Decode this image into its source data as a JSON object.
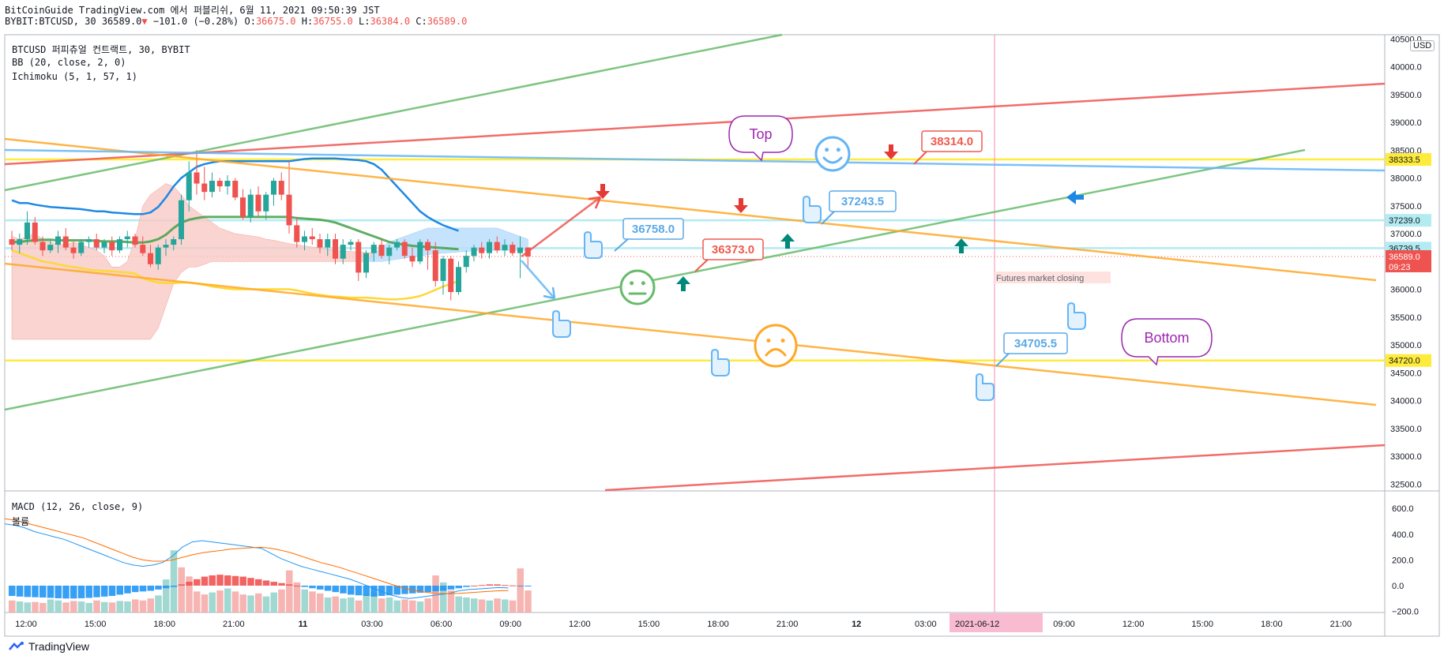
{
  "header": {
    "line1": "BitCoinGuide TradingView.com 에서 퍼블리쉬, 6월 11, 2021 09:50:39 JST",
    "symbol": "BYBIT:BTCUSD, 30",
    "last": "36589.0",
    "change": "−101.0 (−0.28%)",
    "o_label": "O:",
    "o": "36675.0",
    "h_label": "H:",
    "h": "36755.0",
    "l_label": "L:",
    "l": "36384.0",
    "c_label": "C:",
    "c": "36589.0"
  },
  "legend": {
    "title": "BTCUSD 퍼피츄얼 컨트랙트, 30, BYBIT",
    "bb": "BB (20, close, 2, 0)",
    "ichimoku": "Ichimoku (5, 1, 57, 1)",
    "macd": "MACD (12, 26, close, 9)",
    "volume": "볼륨"
  },
  "currency_badge": "USD",
  "footer": {
    "brand": "TradingView"
  },
  "chart_data": [
    {
      "type": "candlestick",
      "yticks": [
        "40500.0",
        "40000.0",
        "39500.0",
        "39000.0",
        "38500.0",
        "38000.0",
        "37500.0",
        "37000.0",
        "36500.0",
        "36000.0",
        "35500.0",
        "35000.0",
        "34500.0",
        "34000.0",
        "33500.0",
        "33000.0",
        "32500.0"
      ],
      "ylim": [
        32400,
        40600
      ],
      "xticks": [
        "12:00",
        "15:00",
        "18:00",
        "21:00",
        "11",
        "03:00",
        "06:00",
        "09:00",
        "12:00",
        "15:00",
        "18:00",
        "21:00",
        "12",
        "03:00",
        "06:00",
        "09:00",
        "12:00",
        "15:00",
        "18:00",
        "21:00"
      ],
      "x_cursor_label": "2021-06-12",
      "candles": [
        [
          36900,
          37050,
          36700,
          36800
        ],
        [
          36800,
          37000,
          36650,
          36900
        ],
        [
          36900,
          37400,
          36800,
          37200
        ],
        [
          37200,
          37300,
          36800,
          36850
        ],
        [
          36850,
          36950,
          36600,
          36700
        ],
        [
          36700,
          36900,
          36650,
          36800
        ],
        [
          36800,
          37050,
          36650,
          36950
        ],
        [
          36950,
          37100,
          36700,
          36750
        ],
        [
          36750,
          36850,
          36550,
          36650
        ],
        [
          36650,
          36900,
          36600,
          36850
        ],
        [
          36850,
          36950,
          36750,
          36900
        ],
        [
          36900,
          37000,
          36700,
          36750
        ],
        [
          36750,
          36900,
          36650,
          36850
        ],
        [
          36850,
          36950,
          36600,
          36700
        ],
        [
          36700,
          36950,
          36650,
          36900
        ],
        [
          36900,
          37050,
          36750,
          36950
        ],
        [
          36950,
          37000,
          36750,
          36800
        ],
        [
          36800,
          36950,
          36600,
          36650
        ],
        [
          36650,
          36800,
          36400,
          36450
        ],
        [
          36450,
          36800,
          36350,
          36750
        ],
        [
          36750,
          36900,
          36600,
          36800
        ],
        [
          36800,
          36950,
          36700,
          36900
        ],
        [
          36900,
          37700,
          36800,
          37600
        ],
        [
          37600,
          38300,
          37400,
          38100
        ],
        [
          38100,
          38500,
          37700,
          37900
        ],
        [
          37900,
          38200,
          37600,
          37750
        ],
        [
          37750,
          38100,
          37650,
          37950
        ],
        [
          37950,
          38000,
          37750,
          37850
        ],
        [
          37850,
          38050,
          37700,
          37950
        ],
        [
          37950,
          38000,
          37600,
          37650
        ],
        [
          37650,
          37800,
          37250,
          37300
        ],
        [
          37300,
          37800,
          37200,
          37700
        ],
        [
          37700,
          37850,
          37300,
          37400
        ],
        [
          37400,
          37750,
          37250,
          37700
        ],
        [
          37700,
          38000,
          37500,
          37950
        ],
        [
          37950,
          38100,
          37600,
          37700
        ],
        [
          37700,
          38300,
          37000,
          37150
        ],
        [
          37150,
          37300,
          36750,
          36850
        ],
        [
          36850,
          37050,
          36700,
          36950
        ],
        [
          36950,
          37100,
          36800,
          36900
        ],
        [
          36900,
          37000,
          36650,
          36750
        ],
        [
          36750,
          37000,
          36600,
          36900
        ],
        [
          36900,
          37000,
          36450,
          36550
        ],
        [
          36550,
          36900,
          36450,
          36800
        ],
        [
          36800,
          36900,
          36700,
          36850
        ],
        [
          36850,
          36900,
          36150,
          36300
        ],
        [
          36300,
          36700,
          36200,
          36650
        ],
        [
          36650,
          36850,
          36500,
          36800
        ],
        [
          36800,
          36900,
          36550,
          36600
        ],
        [
          36600,
          36800,
          36450,
          36750
        ],
        [
          36750,
          36900,
          36700,
          36850
        ],
        [
          36850,
          36900,
          36550,
          36600
        ],
        [
          36600,
          36750,
          36400,
          36500
        ],
        [
          36500,
          36900,
          36450,
          36850
        ],
        [
          36850,
          36900,
          36350,
          36700
        ],
        [
          36700,
          36850,
          36050,
          36150
        ],
        [
          36150,
          36600,
          35900,
          36550
        ],
        [
          36550,
          36600,
          35800,
          35950
        ],
        [
          35950,
          36500,
          35900,
          36400
        ],
        [
          36400,
          36700,
          36300,
          36600
        ],
        [
          36600,
          36800,
          36500,
          36750
        ],
        [
          36750,
          36850,
          36550,
          36650
        ],
        [
          36650,
          36900,
          36550,
          36850
        ],
        [
          36850,
          36950,
          36650,
          36700
        ],
        [
          36700,
          36900,
          36600,
          36800
        ],
        [
          36800,
          36850,
          36600,
          36650
        ],
        [
          36650,
          36950,
          36200,
          36750
        ],
        [
          36750,
          36755,
          36384,
          36589
        ]
      ],
      "annotations": [
        {
          "kind": "label",
          "text": "38314.0",
          "color": "#f05a4f"
        },
        {
          "kind": "label",
          "text": "37243.5",
          "color": "#5aa9e6"
        },
        {
          "kind": "label",
          "text": "36758.0",
          "color": "#5aa9e6"
        },
        {
          "kind": "label",
          "text": "36373.0",
          "color": "#f05a4f"
        },
        {
          "kind": "label",
          "text": "34705.5",
          "color": "#5aa9e6"
        },
        {
          "kind": "balloon",
          "text": "Top",
          "color": "#9c27b0"
        },
        {
          "kind": "balloon",
          "text": "Bottom",
          "color": "#9c27b0"
        },
        {
          "kind": "note",
          "text": "Futures market closing"
        }
      ],
      "price_tags": [
        {
          "value": 38333.5,
          "text": "38333.5",
          "bg": "#ffeb3b",
          "fg": "#131722"
        },
        {
          "value": 37239.0,
          "text": "37239.0",
          "bg": "#b2ebf2",
          "fg": "#131722"
        },
        {
          "value": 36739.5,
          "text": "36739.5",
          "bg": "#b2ebf2",
          "fg": "#131722"
        },
        {
          "value": 36589.0,
          "text": "36589.0",
          "bg": "#ef5350",
          "fg": "#ffffff",
          "sub": "09:23"
        },
        {
          "value": 34720.0,
          "text": "34720.0",
          "bg": "#ffeb3b",
          "fg": "#131722"
        }
      ]
    },
    {
      "type": "macd",
      "yticks": [
        "600.0",
        "400.0",
        "200.0",
        "0.0",
        "−200.0"
      ],
      "ylim": [
        -260,
        650
      ],
      "hist": [
        -80,
        -85,
        -88,
        -90,
        -92,
        -95,
        -98,
        -100,
        -100,
        -98,
        -95,
        -90,
        -85,
        -80,
        -70,
        -60,
        -50,
        -45,
        -40,
        -30,
        -20,
        -10,
        10,
        30,
        50,
        70,
        80,
        85,
        80,
        75,
        70,
        60,
        50,
        40,
        30,
        20,
        10,
        0,
        -10,
        -20,
        -30,
        -40,
        -50,
        -60,
        -70,
        -75,
        -80,
        -85,
        -80,
        -75,
        -70,
        -65,
        -60,
        -55,
        -50,
        -45,
        -40,
        -30,
        -20,
        -10,
        0,
        5,
        10,
        10,
        5,
        2,
        -2,
        -5
      ],
      "volume": [
        120,
        110,
        100,
        105,
        95,
        130,
        120,
        100,
        115,
        110,
        95,
        120,
        105,
        100,
        115,
        110,
        130,
        120,
        140,
        170,
        330,
        620,
        450,
        360,
        210,
        180,
        200,
        220,
        240,
        210,
        180,
        170,
        190,
        160,
        200,
        230,
        420,
        300,
        230,
        210,
        190,
        150,
        160,
        140,
        150,
        120,
        180,
        200,
        140,
        150,
        120,
        130,
        120,
        110,
        140,
        370,
        300,
        220,
        160,
        150,
        140,
        130,
        120,
        140,
        130,
        120,
        440,
        220
      ],
      "volume_up": [
        false,
        true,
        true,
        false,
        false,
        true,
        true,
        false,
        false,
        true,
        true,
        false,
        true,
        false,
        true,
        true,
        false,
        false,
        false,
        true,
        true,
        true,
        false,
        false,
        false,
        false,
        true,
        false,
        true,
        false,
        false,
        true,
        false,
        true,
        true,
        false,
        false,
        false,
        true,
        false,
        false,
        true,
        false,
        true,
        true,
        false,
        true,
        true,
        false,
        true,
        true,
        false,
        false,
        true,
        false,
        false,
        true,
        false,
        true,
        true,
        true,
        false,
        true,
        false,
        true,
        false,
        false,
        false
      ],
      "macd": [
        480,
        470,
        450,
        420,
        400,
        380,
        360,
        330,
        300,
        270,
        240,
        210,
        180,
        160,
        150,
        160,
        180,
        230,
        300,
        340,
        350,
        340,
        330,
        320,
        310,
        300,
        290,
        250,
        210,
        180,
        150,
        130,
        110,
        90,
        70,
        50,
        20,
        -10,
        -40,
        -70,
        -90,
        -100,
        -90,
        -80,
        -70,
        -60,
        -40,
        -30,
        -25,
        -20,
        -15,
        -18
      ],
      "signal": [
        520,
        510,
        490,
        470,
        450,
        430,
        410,
        390,
        370,
        340,
        310,
        280,
        250,
        220,
        200,
        190,
        190,
        200,
        220,
        240,
        255,
        265,
        275,
        285,
        290,
        295,
        298,
        290,
        275,
        255,
        230,
        205,
        180,
        160,
        140,
        115,
        90,
        65,
        40,
        15,
        -10,
        -30,
        -45,
        -55,
        -60,
        -62,
        -60,
        -55,
        -50,
        -45,
        -40,
        -38
      ]
    }
  ]
}
